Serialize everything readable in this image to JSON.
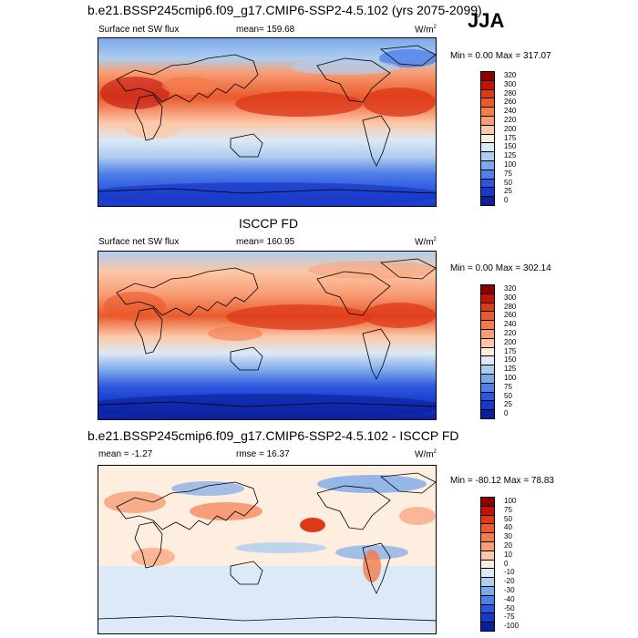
{
  "season": "JJA",
  "panels": [
    {
      "title": "b.e21.BSSP245cmip6.f09_g17.CMIP6-SSP2-4.5.102 (yrs 2075-2099)",
      "left": "Surface net SW flux",
      "center": "mean= 159.68",
      "units": "W/m",
      "units_sup": "2",
      "minmax": "Min =   0.00 Max = 317.07",
      "colorbar": {
        "labels": [
          "320",
          "300",
          "280",
          "260",
          "240",
          "220",
          "200",
          "175",
          "150",
          "125",
          "100",
          "75",
          "50",
          "25",
          "0"
        ],
        "colors": [
          "#8b0000",
          "#c1120c",
          "#dd3a1a",
          "#e95a2c",
          "#f37b4c",
          "#f89e76",
          "#fcc7a6",
          "#fdeedf",
          "#dce9f6",
          "#aecdee",
          "#7ba9ea",
          "#4f7fe8",
          "#2c56de",
          "#1838c8",
          "#0a1f99"
        ]
      }
    },
    {
      "title": "ISCCP FD",
      "left": "Surface net SW flux",
      "center": "mean= 160.95",
      "units": "W/m",
      "units_sup": "2",
      "minmax": "Min =   0.00 Max = 302.14",
      "colorbar": {
        "labels": [
          "320",
          "300",
          "280",
          "260",
          "240",
          "220",
          "200",
          "175",
          "150",
          "125",
          "100",
          "75",
          "50",
          "25",
          "0"
        ],
        "colors": [
          "#8b0000",
          "#c1120c",
          "#dd3a1a",
          "#e95a2c",
          "#f37b4c",
          "#f89e76",
          "#fcc7a6",
          "#fdeedf",
          "#dce9f6",
          "#aecdee",
          "#7ba9ea",
          "#4f7fe8",
          "#2c56de",
          "#1838c8",
          "#0a1f99"
        ]
      }
    },
    {
      "title": "b.e21.BSSP245cmip6.f09_g17.CMIP6-SSP2-4.5.102 - ISCCP FD",
      "left": "mean =  -1.27",
      "center": "rmse =  16.37",
      "units": "W/m",
      "units_sup": "2",
      "minmax": "Min = -80.12 Max =  78.83",
      "colorbar": {
        "labels": [
          "100",
          "75",
          "50",
          "40",
          "30",
          "20",
          "10",
          "0",
          "-10",
          "-20",
          "-30",
          "-40",
          "-50",
          "-75",
          "-100"
        ],
        "colors": [
          "#8b0000",
          "#c1120c",
          "#dd3a1a",
          "#e95a2c",
          "#f37b4c",
          "#f89e76",
          "#fcc7a6",
          "#fdeedf",
          "#dce9f6",
          "#aecdee",
          "#7ba9ea",
          "#4f7fe8",
          "#2c56de",
          "#1838c8",
          "#0a1f99"
        ]
      }
    }
  ]
}
